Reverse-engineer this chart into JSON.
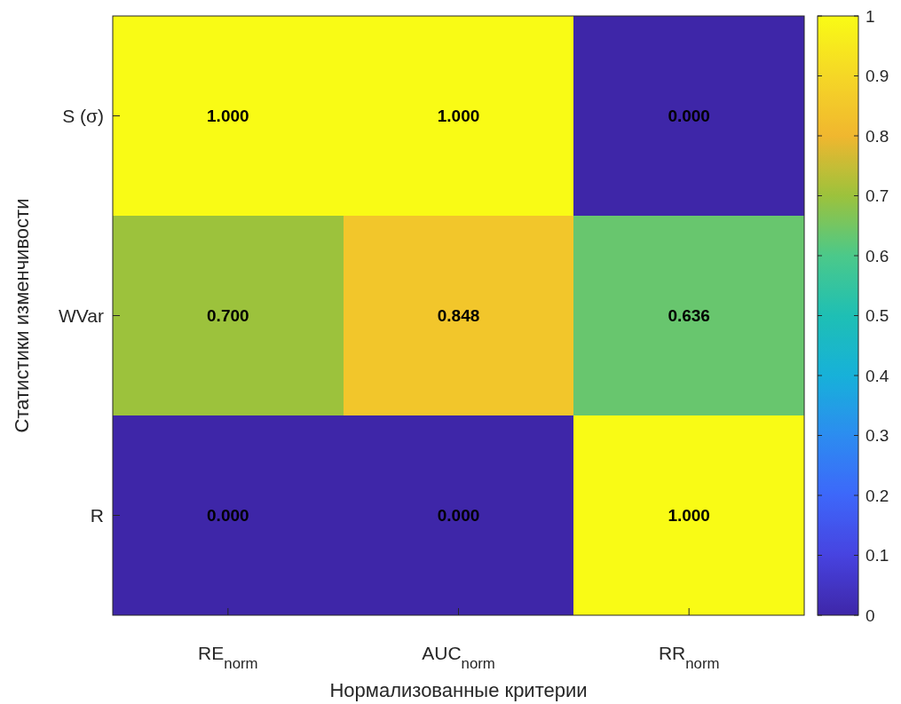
{
  "chart_data": {
    "type": "heatmap",
    "xlabel": "Нормализованные критерии",
    "ylabel": "Статистики изменчивости",
    "categories": [
      "RE$_{norm}$",
      "AUC$_{norm}$",
      "RR$_{norm}$"
    ],
    "y_categories": [
      "S (σ)",
      "WVar",
      "R"
    ],
    "cells": [
      [
        1,
        1,
        0
      ],
      [
        0.7,
        0.848,
        0.636
      ],
      [
        0,
        0,
        1
      ]
    ],
    "cell_labels": [
      [
        "1.000",
        "1.000",
        "0.000"
      ],
      [
        "0.700",
        "0.848",
        "0.636"
      ],
      [
        "0.000",
        "0.000",
        "1.000"
      ]
    ],
    "clim": [
      0,
      1
    ],
    "cticks": [
      0,
      0.1,
      0.2,
      0.3,
      0.4,
      0.5,
      0.6,
      0.7,
      0.8,
      0.9,
      1
    ]
  }
}
